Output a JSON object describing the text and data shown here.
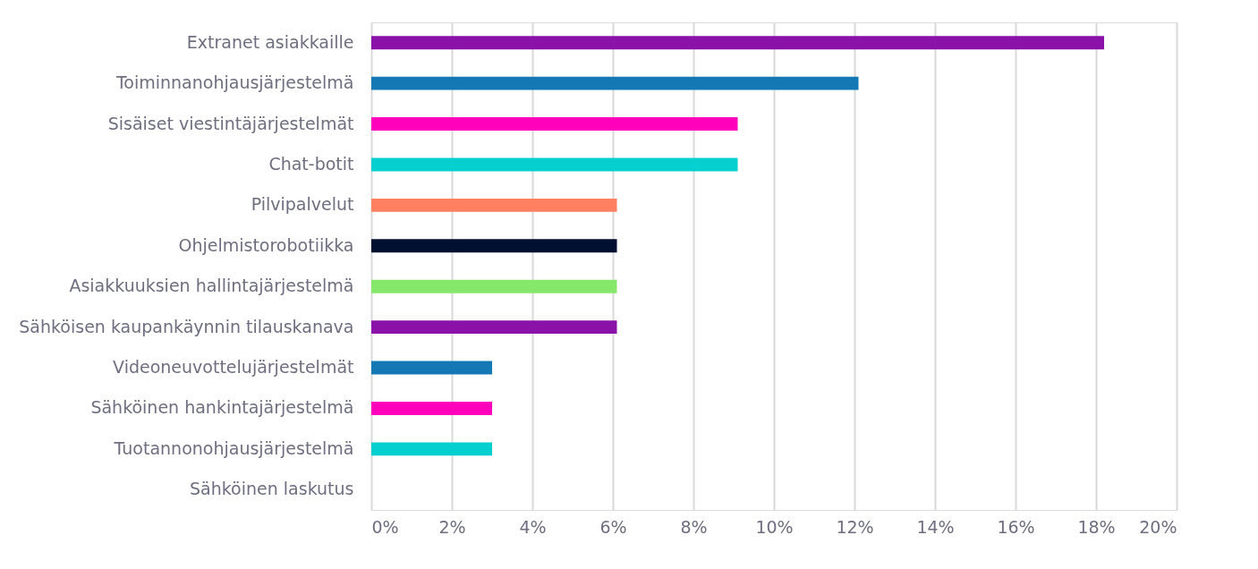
{
  "chart_data": {
    "type": "bar",
    "orientation": "horizontal",
    "categories": [
      "Extranet asiakkaille",
      "Toiminnanohjausjärjestelmä",
      "Sisäiset viestintäjärjestelmät",
      "Chat-botit",
      "Pilvipalvelut",
      "Ohjelmistorobotiikka",
      "Asiakkuuksien hallintajärjestelmä",
      "Sähköisen kaupankäynnin tilauskanava",
      "Videoneuvottelujärjestelmät",
      "Sähköinen hankintajärjestelmä",
      "Tuotannonohjausjärjestelmä",
      "Sähköinen laskutus"
    ],
    "values": [
      18.2,
      12.1,
      9.1,
      9.1,
      6.1,
      6.1,
      6.1,
      6.1,
      3.0,
      3.0,
      3.0,
      0
    ],
    "colors": [
      "#8b12a8",
      "#1378b4",
      "#ff00bb",
      "#05cfcf",
      "#ff8060",
      "#001030",
      "#86e86a",
      "#8b12a8",
      "#1378b4",
      "#ff00bb",
      "#05cfcf",
      "#05cfcf"
    ],
    "xlim": [
      0,
      20
    ],
    "xticks": [
      {
        "value": 0,
        "label": "0%"
      },
      {
        "value": 2,
        "label": "2%"
      },
      {
        "value": 4,
        "label": "4%"
      },
      {
        "value": 6,
        "label": "6%"
      },
      {
        "value": 8,
        "label": "8%"
      },
      {
        "value": 10,
        "label": "10%"
      },
      {
        "value": 12,
        "label": "12%"
      },
      {
        "value": 14,
        "label": "14%"
      },
      {
        "value": 16,
        "label": "16%"
      },
      {
        "value": 18,
        "label": "18%"
      },
      {
        "value": 20,
        "label": "20%"
      }
    ],
    "grid": "x",
    "legend": false
  }
}
